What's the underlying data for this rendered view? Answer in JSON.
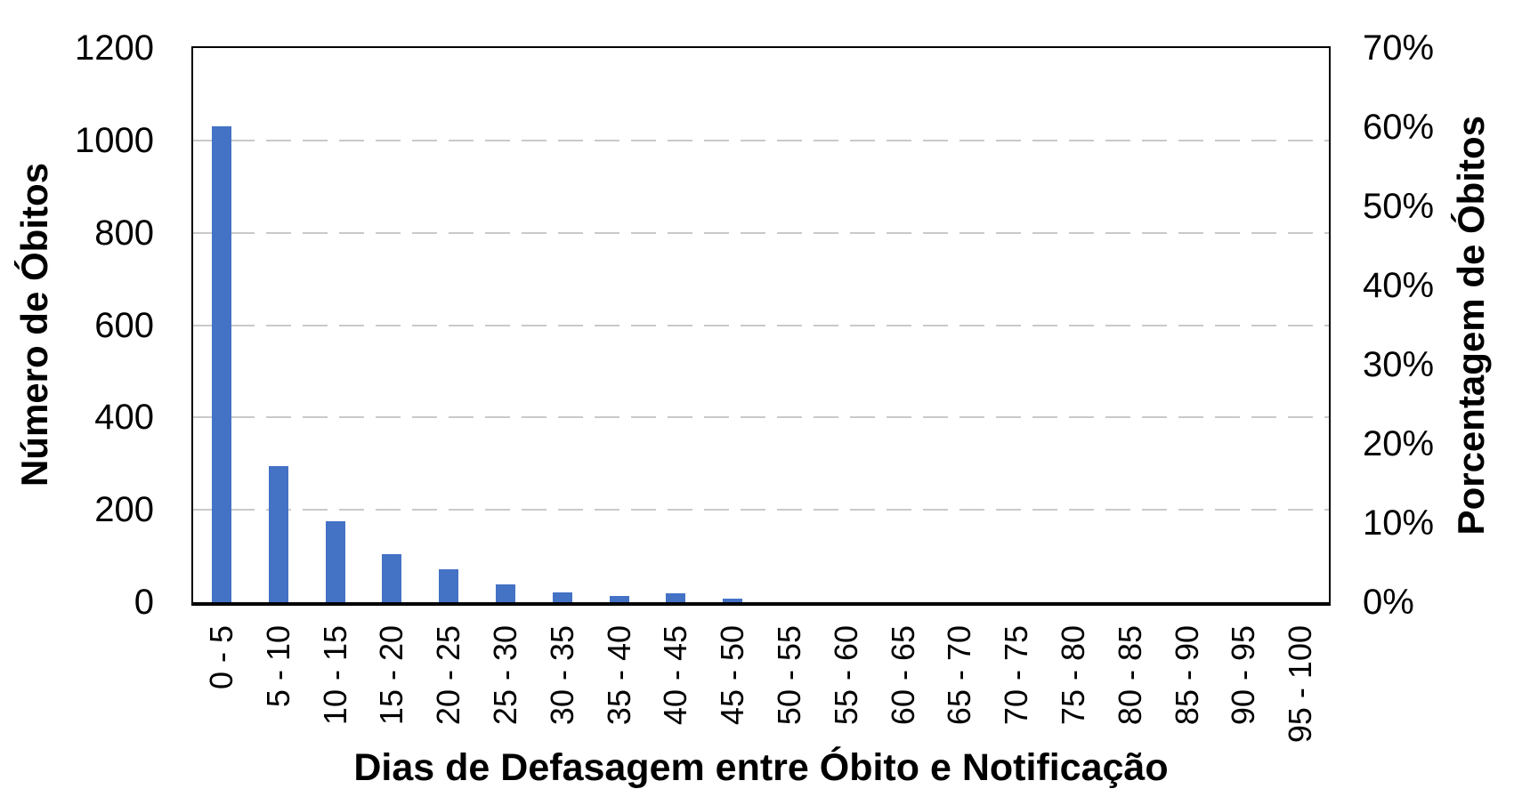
{
  "chart_data": {
    "type": "bar",
    "categories": [
      "0 - 5",
      "5 - 10",
      "10 - 15",
      "15 - 20",
      "20 - 25",
      "25 - 30",
      "30 - 35",
      "35 - 40",
      "40 - 45",
      "45 - 50",
      "50 - 55",
      "55 - 60",
      "60 - 65",
      "65 - 70",
      "70 - 75",
      "75 - 80",
      "80 - 85",
      "85 - 90",
      "90 - 95",
      "95 - 100"
    ],
    "series": [
      {
        "name": "Número de Óbitos",
        "values": [
          1030,
          294,
          176,
          105,
          72,
          38,
          21,
          14,
          20,
          7,
          0,
          0,
          0,
          0,
          0,
          0,
          0,
          0,
          0,
          0
        ]
      }
    ],
    "xlabel": "Dias de Defasagem entre Óbito e Notificação",
    "ylabel_left": "Número de Óbitos",
    "ylabel_right": "Porcentagem de Óbitos",
    "axis_left": {
      "min": 0,
      "max": 1200,
      "step": 200,
      "tick_labels": [
        "0",
        "200",
        "400",
        "600",
        "800",
        "1000",
        "1200"
      ]
    },
    "axis_right": {
      "min": 0,
      "max": 70,
      "step": 10,
      "tick_labels": [
        "0%",
        "10%",
        "20%",
        "30%",
        "40%",
        "50%",
        "60%",
        "70%"
      ]
    },
    "bar_color": "#4472C4",
    "gridline_color": "#C9C9C9",
    "plot_border_color": "#000000",
    "grid": "horizontal-dashed",
    "legend_position": "none",
    "plot_background": "#FFFFFF"
  }
}
